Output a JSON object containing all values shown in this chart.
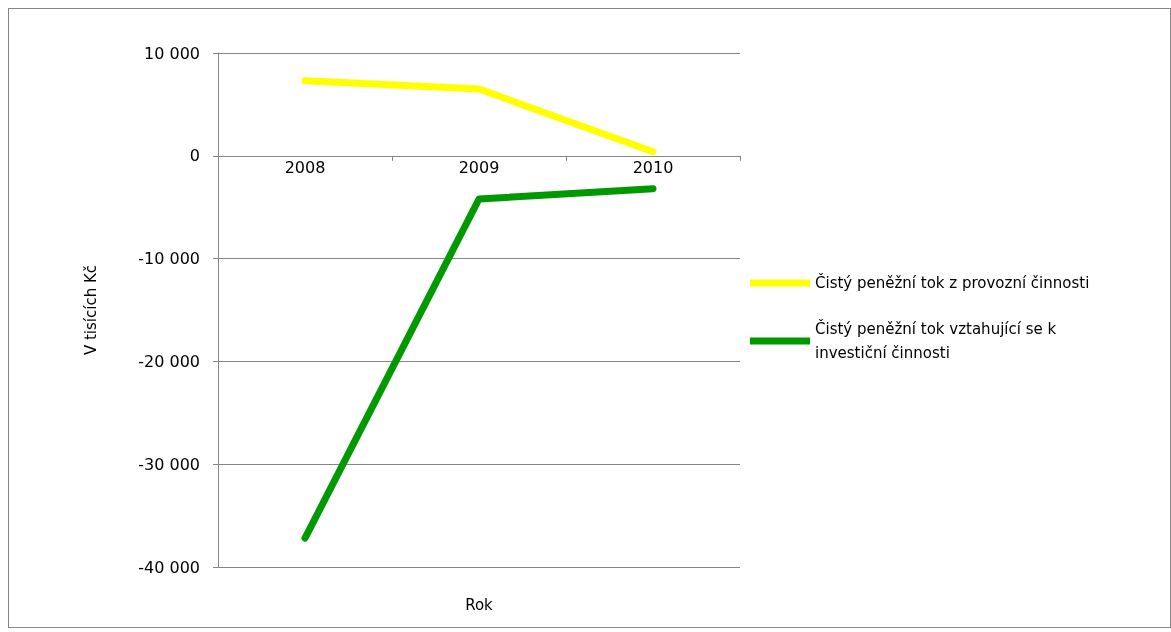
{
  "chart_data": {
    "type": "line",
    "xlabel": "Rok",
    "ylabel": "V tisících Kč",
    "categories": [
      "2008",
      "2009",
      "2010"
    ],
    "series": [
      {
        "name": "Čistý peněžní tok z provozní činnosti",
        "color": "#ffff00",
        "values": [
          7300,
          6500,
          400
        ]
      },
      {
        "name": "Čistý peněžní tok vztahující se k investiční činnosti",
        "color": "#009900",
        "values": [
          -37200,
          -4200,
          -3200
        ]
      }
    ],
    "ylim": [
      -40000,
      10000
    ],
    "yticks": [
      {
        "value": -40000,
        "label": "-40 000"
      },
      {
        "value": -30000,
        "label": "-30 000"
      },
      {
        "value": -20000,
        "label": "-20 000"
      },
      {
        "value": -10000,
        "label": "-10 000"
      },
      {
        "value": 0,
        "label": "0"
      },
      {
        "value": 10000,
        "label": "10 000"
      }
    ],
    "grid": "y",
    "legend": "right",
    "marker": "none",
    "line_style": "solid"
  }
}
